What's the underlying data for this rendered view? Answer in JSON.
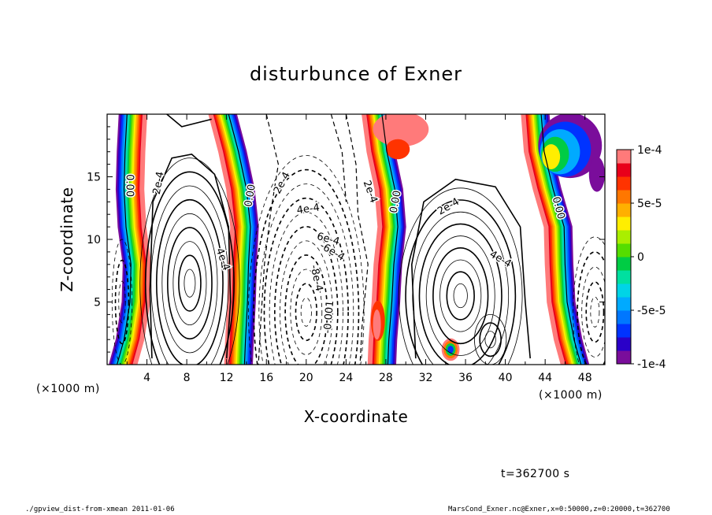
{
  "chart_data": {
    "type": "heatmap",
    "title": "disturbunce of Exner",
    "xlabel": "X-coordinate",
    "ylabel": "Z-coordinate",
    "x_unit": "(×1000 m)",
    "y_unit": "(×1000 m)",
    "xlim": [
      0,
      50
    ],
    "ylim": [
      0,
      20
    ],
    "x_ticks": [
      4,
      8,
      12,
      16,
      20,
      24,
      28,
      32,
      36,
      40,
      44,
      48
    ],
    "y_ticks": [
      5,
      10,
      15
    ],
    "colorbar": {
      "range": [
        -0.0001,
        0.0001
      ],
      "tick_labels": [
        "1e-4",
        "5e-5",
        "0",
        "-5e-5",
        "-1e-4"
      ],
      "colors": [
        "#7a0d9b",
        "#2a00c8",
        "#0033ff",
        "#0077ff",
        "#00aaff",
        "#00d4e6",
        "#00e0a0",
        "#00cc44",
        "#55dd00",
        "#aaee00",
        "#ffee00",
        "#ffb000",
        "#ff7700",
        "#ff3300",
        "#e8001a",
        "#ff7a7a"
      ]
    },
    "contour_labels": [
      "0.00",
      "2e-4",
      "0.00",
      "2e-4",
      "4e-4",
      "6e-4",
      "4e-4",
      "-6e-4",
      "2e-4",
      "-8e-4",
      "-0.001",
      "0.00",
      "2e-4",
      "4e-4",
      "0.00"
    ],
    "annotation": "t=362700 s"
  },
  "footer": {
    "left": "./gpview_dist-from-xmean  2011-01-06",
    "right": "MarsCond_Exner.nc@Exner,x=0:50000,z=0:20000,t=362700"
  }
}
